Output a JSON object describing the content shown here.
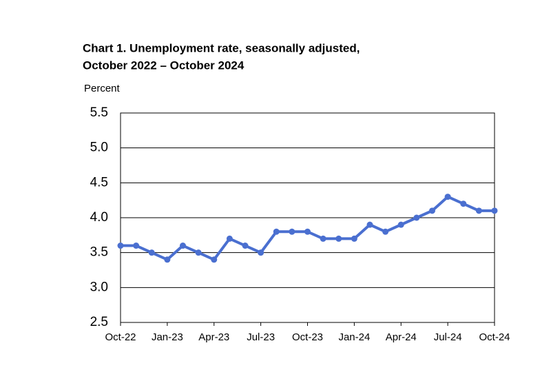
{
  "chart_data": {
    "type": "line",
    "title": [
      "Chart 1. Unemployment rate, seasonally adjusted,",
      "October 2022 – October 2024"
    ],
    "y_label": "Percent",
    "categories": [
      "Oct-22",
      null,
      null,
      "Jan-23",
      null,
      null,
      "Apr-23",
      null,
      null,
      "Jul-23",
      null,
      null,
      "Oct-23",
      null,
      null,
      "Jan-24",
      null,
      null,
      "Apr-24",
      null,
      null,
      "Jul-24",
      null,
      null,
      "Oct-24"
    ],
    "series": [
      {
        "name": "Unemployment rate",
        "color": "#4a6fd0",
        "values": [
          3.6,
          3.6,
          3.5,
          3.4,
          3.6,
          3.5,
          3.4,
          3.7,
          3.6,
          3.5,
          3.8,
          3.8,
          3.8,
          3.7,
          3.7,
          3.7,
          3.9,
          3.8,
          3.9,
          4.0,
          4.1,
          4.3,
          4.2,
          4.1,
          4.1
        ]
      }
    ],
    "ylim": [
      2.5,
      5.5
    ],
    "yticks": [
      2.5,
      {
        "value": 3,
        "label": "3.0"
      },
      3.5,
      {
        "value": 4,
        "label": "4.0"
      },
      4.5,
      {
        "value": 5,
        "label": "5.0"
      },
      5.5
    ],
    "grid": true
  }
}
